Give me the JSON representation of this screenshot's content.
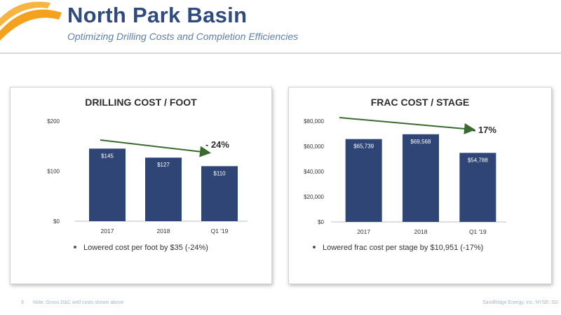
{
  "header": {
    "title": "North Park Basin",
    "subtitle": "Optimizing Drilling Costs and Completion Efficiencies"
  },
  "colors": {
    "bar": "#2e4575",
    "arrow": "#3a6b2e",
    "title": "#2f4a7e",
    "logo_orange": "#f4a21e"
  },
  "footer": {
    "page": "9",
    "note": "Note: Gross D&C well costs shown above",
    "company": "SandRidge Energy, Inc. NYSE: SD"
  },
  "chart_data": [
    {
      "type": "bar",
      "title": "DRILLING COST / FOOT",
      "categories": [
        "2017",
        "2018",
        "Q1 '19"
      ],
      "values": [
        145,
        127,
        110
      ],
      "value_labels": [
        "$145",
        "$127",
        "$110"
      ],
      "ylim": [
        0,
        200
      ],
      "yticks": [
        0,
        100,
        200
      ],
      "ytick_labels": [
        "$0",
        "$100",
        "$200"
      ],
      "trend_label": "- 24%",
      "bullet": "Lowered cost per foot by $35 (-24%)"
    },
    {
      "type": "bar",
      "title": "FRAC COST / STAGE",
      "categories": [
        "2017",
        "2018",
        "Q1 '19"
      ],
      "values": [
        65739,
        69568,
        54788
      ],
      "value_labels": [
        "$65,739",
        "$69,568",
        "$54,788"
      ],
      "ylim": [
        0,
        80000
      ],
      "yticks": [
        0,
        20000,
        40000,
        60000,
        80000
      ],
      "ytick_labels": [
        "$0",
        "$20,000",
        "$40,000",
        "$60,000",
        "$80,000"
      ],
      "trend_label": "- 17%",
      "bullet": "Lowered frac cost per stage by $10,951 (-17%)"
    }
  ]
}
